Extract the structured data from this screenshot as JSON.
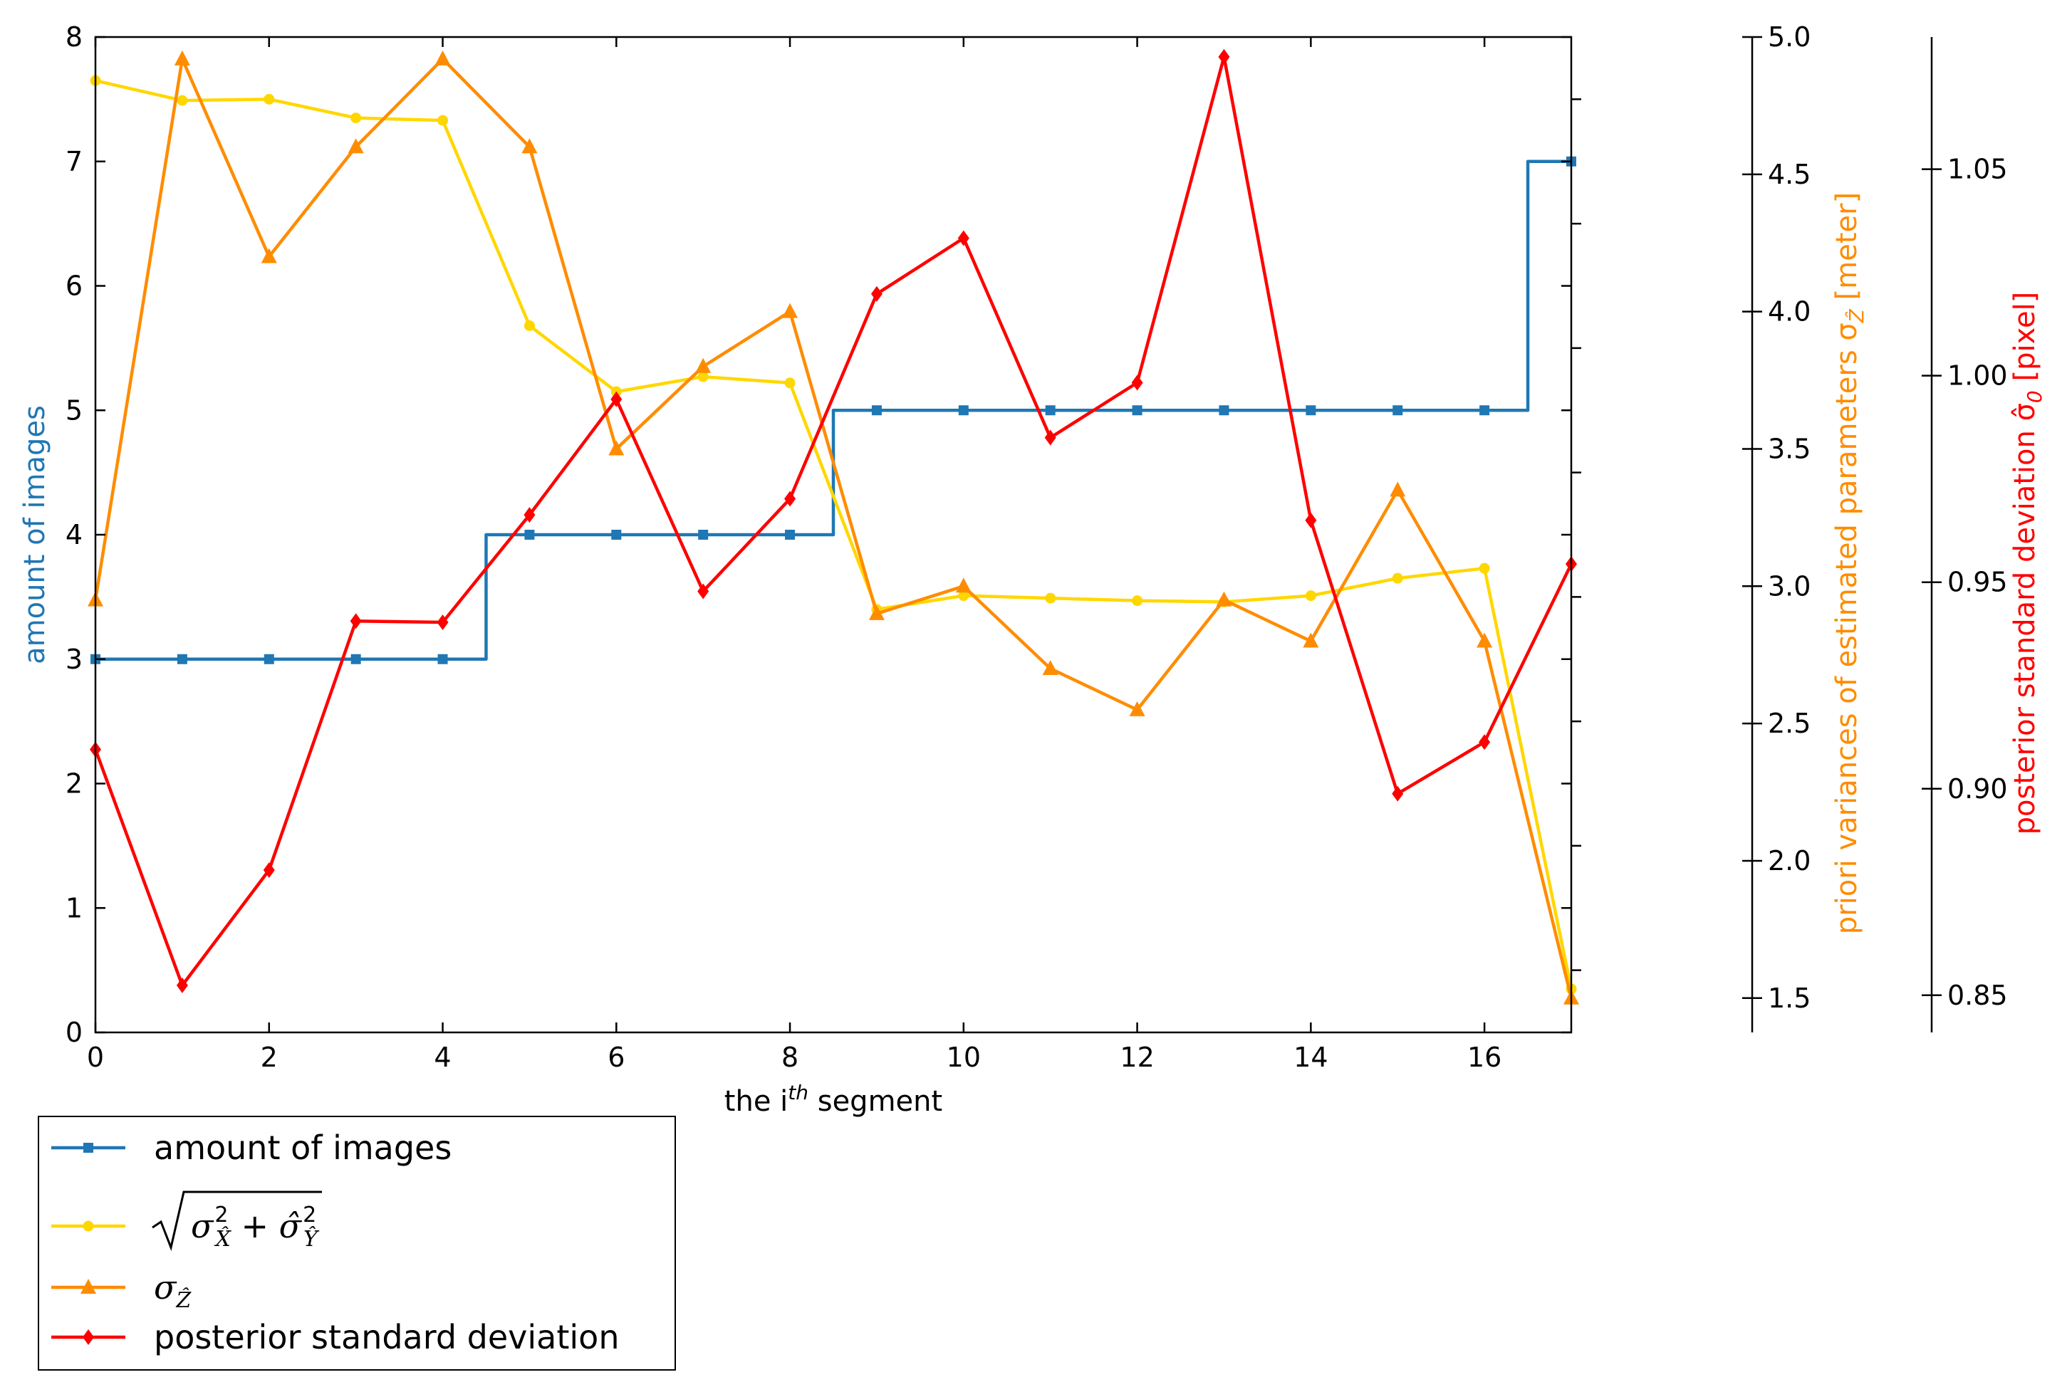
{
  "chart_data": {
    "type": "line",
    "x": [
      0,
      1,
      2,
      3,
      4,
      5,
      6,
      7,
      8,
      9,
      10,
      11,
      12,
      13,
      14,
      15,
      16,
      17
    ],
    "xlim": [
      0,
      17
    ],
    "xticks": [
      0,
      2,
      4,
      6,
      8,
      10,
      12,
      14,
      16
    ],
    "xticklabels": [
      "0",
      "2",
      "4",
      "6",
      "8",
      "10",
      "12",
      "14",
      "16"
    ],
    "xlabel": {
      "base": "the i",
      "sup": "th",
      "rest": " segment"
    },
    "axes": {
      "left": {
        "ylabel": "amount of images",
        "color": "#1f77b4",
        "ylim": [
          0,
          8
        ],
        "ticks": [
          0,
          1,
          2,
          3,
          4,
          5,
          6,
          7,
          8
        ],
        "ticklabels": [
          "0",
          "1",
          "2",
          "3",
          "4",
          "5",
          "6",
          "7",
          "8"
        ]
      },
      "right1": {
        "ylabel": {
          "base": "priori variances of estimated parameters σ",
          "sub": "Ẑ",
          "rest": " [meter]"
        },
        "color": "#ff8c00",
        "ylim": [
          1.375,
          5.0
        ],
        "ticks": [
          1.5,
          2.0,
          2.5,
          3.0,
          3.5,
          4.0,
          4.5,
          5.0
        ],
        "ticklabels": [
          "1.5",
          "2.0",
          "2.5",
          "3.0",
          "3.5",
          "4.0",
          "4.5",
          "5.0"
        ]
      },
      "right2": {
        "ylabel": {
          "base": "posterior standard deviation σ̂",
          "sub": "0",
          "rest": " [pixel]"
        },
        "color": "#ff0000",
        "ylim": [
          0.841,
          1.082
        ],
        "ticks": [
          0.85,
          0.9,
          0.95,
          1.0,
          1.05
        ],
        "ticklabels": [
          "0.85",
          "0.90",
          "0.95",
          "1.00",
          "1.05"
        ]
      }
    },
    "series": [
      {
        "name": "amount of images",
        "axis": "left",
        "color": "#1f77b4",
        "marker": "square",
        "drawstyle": "steps-mid",
        "values": [
          3,
          3,
          3,
          3,
          3,
          4,
          4,
          4,
          4,
          5,
          5,
          5,
          5,
          5,
          5,
          5,
          5,
          7
        ]
      },
      {
        "name": "sqrt-sigma-x-y",
        "axis": "left",
        "color": "#ffd700",
        "marker": "circle",
        "drawstyle": "default",
        "values": [
          7.65,
          7.49,
          7.5,
          7.35,
          7.33,
          5.68,
          5.15,
          5.27,
          5.22,
          3.4,
          3.51,
          3.49,
          3.47,
          3.46,
          3.51,
          3.65,
          3.73,
          0.35
        ]
      },
      {
        "name": "sigma-z",
        "axis": "right1",
        "color": "#ff8c00",
        "marker": "triangle",
        "drawstyle": "default",
        "values": [
          2.95,
          4.92,
          4.2,
          4.6,
          4.92,
          4.6,
          3.5,
          3.8,
          4.0,
          2.9,
          3.0,
          2.7,
          2.55,
          2.95,
          2.8,
          3.35,
          2.8,
          1.5
        ]
      },
      {
        "name": "posterior standard deviation",
        "axis": "right2",
        "color": "#ff0000",
        "marker": "diamond",
        "drawstyle": "default",
        "values": [
          0.9095,
          0.8524,
          0.8803,
          0.9406,
          0.9403,
          0.9663,
          0.9943,
          0.9478,
          0.9702,
          1.0198,
          1.0333,
          0.985,
          0.9983,
          1.0772,
          0.965,
          0.8988,
          0.9113,
          0.9544
        ]
      }
    ],
    "legend": {
      "placement": "below-left",
      "entries": [
        {
          "type": "text",
          "label": "amount of images",
          "color": "#1f77b4",
          "marker": "square"
        },
        {
          "type": "sqrt",
          "label": "σ²X̂ + σ̂²Ŷ",
          "color": "#ffd700",
          "marker": "circle"
        },
        {
          "type": "sigma",
          "label": "σẐ",
          "color": "#ff8c00",
          "marker": "triangle"
        },
        {
          "type": "text",
          "label": "posterior standard deviation",
          "color": "#ff0000",
          "marker": "diamond"
        }
      ]
    }
  }
}
